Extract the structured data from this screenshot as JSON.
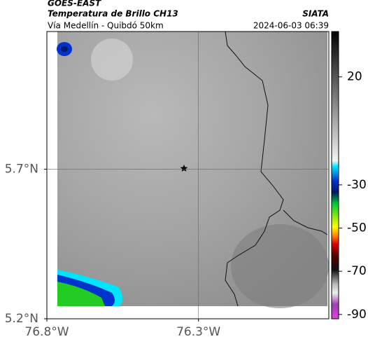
{
  "header": {
    "satellite": "GOES-EAST",
    "title": "Temperatura de Brillo CH13",
    "subtitle": "Vía Medellín - Quibdó 50km",
    "source": "SIATA",
    "datetime": "2024-06-03 06:39"
  },
  "map": {
    "xlim": [
      -76.8,
      -75.87
    ],
    "ylim": [
      5.2,
      6.16
    ],
    "xticks": [
      {
        "value": -76.8,
        "label": "76.8°W"
      },
      {
        "value": -76.3,
        "label": "76.3°W"
      }
    ],
    "yticks": [
      {
        "value": 5.7,
        "label": "5.7°N"
      },
      {
        "value": 5.2,
        "label": "5.2°N"
      }
    ],
    "grid": true
  },
  "colorbar": {
    "lim": [
      -92,
      41
    ],
    "ticks": [
      20,
      -30,
      -50,
      -70,
      -90
    ]
  }
}
